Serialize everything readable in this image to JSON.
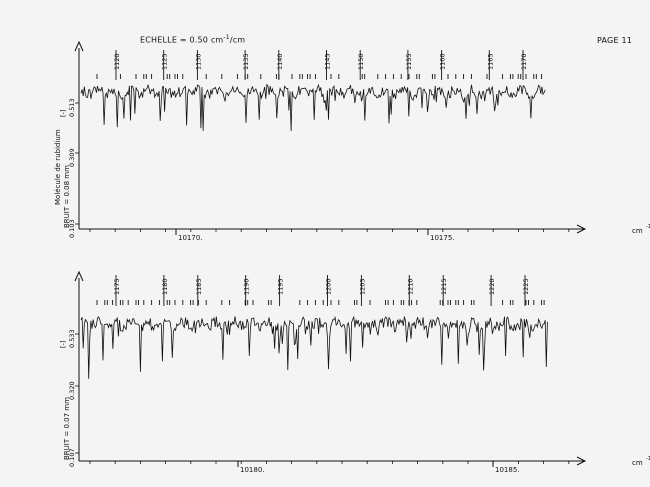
{
  "header": {
    "scale_prefix": "ECHELLE = 0.50 cm",
    "scale_exp": "-1",
    "scale_suffix": "/cm",
    "page_label": "PAGE 11"
  },
  "side_labels": {
    "molecule": "Molécule de rubidium",
    "noise_top": "BRUIT = 0.08 mm",
    "noise_bottom": "BRUIT = 0.07 mm"
  },
  "unit_label": "cm",
  "colors": {
    "ink": "#111111",
    "paper": "#f4f4f4"
  },
  "chart_data": [
    {
      "type": "line",
      "title": "",
      "xlabel": "cm-1",
      "ylabel": "",
      "xlim": [
        10167.4,
        10178.1
      ],
      "x_ticks": [
        10170,
        10175
      ],
      "x_tick_labels": [
        "10170.",
        "10175."
      ],
      "y_ticks": [
        0.103,
        0.309,
        0.513
      ],
      "y_tick_labels": [
        "0.103",
        "0.309",
        "0.513"
      ],
      "y_marker": "[-]",
      "line_numbers": [
        "1120",
        "1125",
        "1130",
        "1135",
        "1140",
        "1145",
        "1150",
        "1155",
        "1160",
        "1165",
        "1170"
      ],
      "noise_mm": 0.08
    },
    {
      "type": "line",
      "title": "",
      "xlabel": "cm-1",
      "ylabel": "",
      "xlim": [
        10177.3,
        10186.3
      ],
      "x_ticks": [
        10180,
        10185
      ],
      "x_tick_labels": [
        "10180.",
        "10185."
      ],
      "y_ticks": [
        0.107,
        0.32,
        0.533
      ],
      "y_tick_labels": [
        "0.107",
        "0.320",
        "0.533"
      ],
      "y_marker": "[-]",
      "line_numbers": [
        "1175",
        "1180",
        "1185",
        "1190",
        "1195",
        "1200",
        "1205",
        "1210",
        "1215",
        "1220",
        "1225"
      ],
      "noise_mm": 0.07
    }
  ]
}
